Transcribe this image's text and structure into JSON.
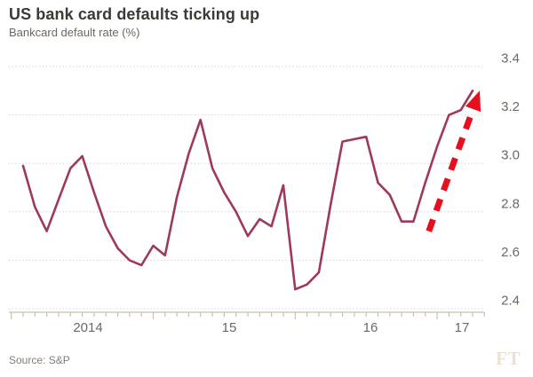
{
  "header": {
    "title": "US bank card defaults ticking up",
    "subtitle": "Bankcard default rate (%)"
  },
  "footer": {
    "source": "Source: S&P",
    "brand": "FT"
  },
  "colors": {
    "series_line": "#9e3a57",
    "trend_arrow": "#e60f1e",
    "gridline": "#d2cabc",
    "axis": "#c8bfae",
    "tick_text": "#6e6861",
    "title_text": "#3b3a34",
    "brand_text": "#efe0cf"
  },
  "chart_data": {
    "type": "line",
    "title": "US bank card defaults ticking up",
    "subtitle": "Bankcard default rate (%)",
    "source": "Source: S&P",
    "grid": "horizontal dotted",
    "legend": "none",
    "ylim": [
      2.4,
      3.4
    ],
    "y_ticks": [
      "3.4",
      "3.2",
      "3.0",
      "2.8",
      "2.6",
      "2.4"
    ],
    "y_tick_values": [
      3.4,
      3.2,
      3.0,
      2.8,
      2.6,
      2.4
    ],
    "x_tick_labels": [
      "2014",
      "15",
      "16",
      "17"
    ],
    "x": [
      "2014-01",
      "2014-02",
      "2014-03",
      "2014-04",
      "2014-05",
      "2014-06",
      "2014-07",
      "2014-08",
      "2014-09",
      "2014-10",
      "2014-11",
      "2014-12",
      "2015-01",
      "2015-02",
      "2015-03",
      "2015-04",
      "2015-05",
      "2015-06",
      "2015-07",
      "2015-08",
      "2015-09",
      "2015-10",
      "2015-11",
      "2015-12",
      "2016-01",
      "2016-02",
      "2016-03",
      "2016-04",
      "2016-05",
      "2016-06",
      "2016-07",
      "2016-08",
      "2016-09",
      "2016-10",
      "2016-11",
      "2016-12",
      "2017-01",
      "2017-02",
      "2017-03"
    ],
    "values": [
      2.99,
      2.82,
      2.72,
      2.85,
      2.98,
      3.03,
      2.88,
      2.74,
      2.65,
      2.6,
      2.58,
      2.66,
      2.62,
      2.86,
      3.04,
      3.18,
      2.98,
      2.88,
      2.8,
      2.7,
      2.77,
      2.74,
      2.91,
      2.48,
      2.5,
      2.55,
      2.83,
      3.09,
      3.1,
      3.11,
      2.92,
      2.87,
      2.76,
      2.76,
      2.92,
      3.07,
      3.2,
      3.22,
      3.3
    ],
    "annotation": {
      "shape": "dashed-arrow",
      "direction": "up",
      "meaning": "defaults ticking up",
      "start": {
        "month_index": 34.3,
        "value": 2.72
      },
      "tip": {
        "month_index": 38.6,
        "value": 3.3
      }
    }
  }
}
